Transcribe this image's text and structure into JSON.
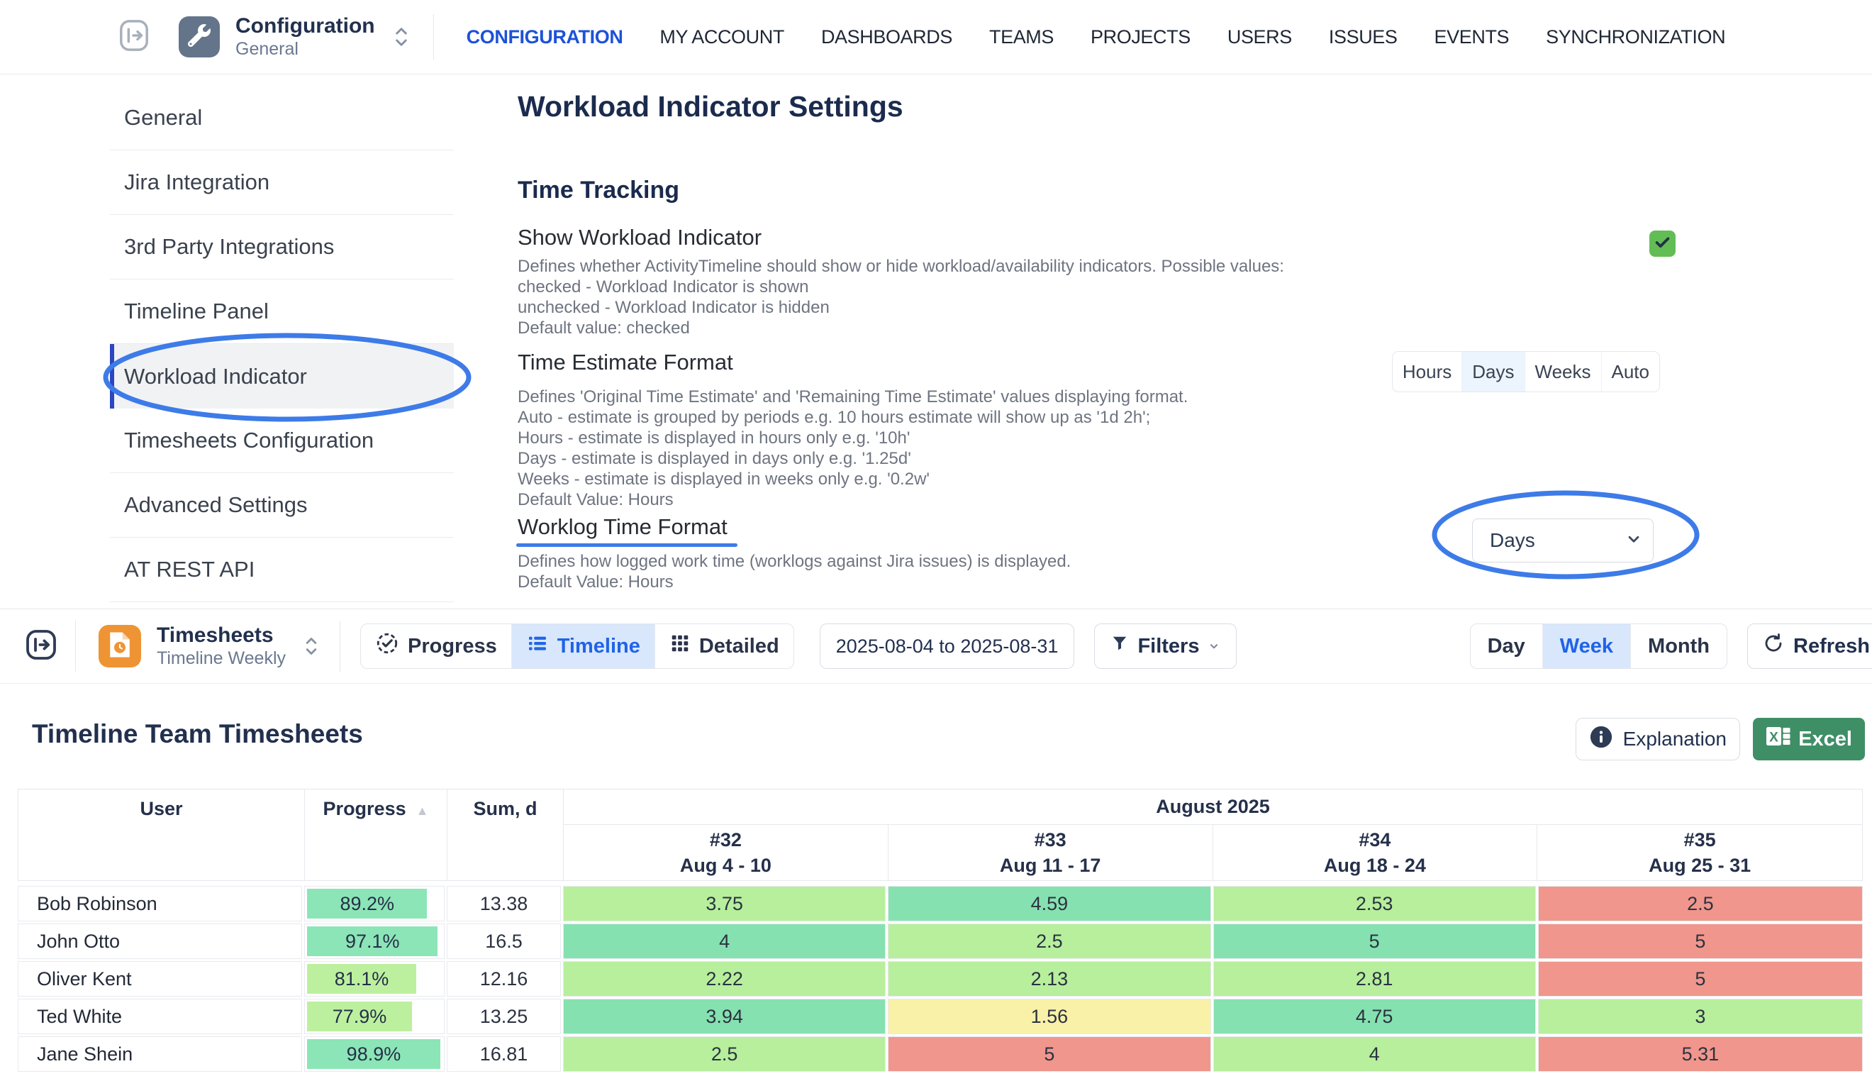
{
  "colors": {
    "annotation_blue": "#3D7BE8",
    "nav_active_blue": "#1D52D8",
    "selected_tab_bg": "#D9E7FC",
    "selected_tab_text": "#2063E6",
    "checkbox_green": "#63BD55",
    "excel_green": "#3F8F66",
    "timesheets_icon_orange": "#EF9434",
    "config_icon_slate": "#64748B",
    "cell_teal": "#86E1B0",
    "cell_green": "#B7EF9D",
    "cell_yellow": "#F8F1A7",
    "cell_red": "#F0968C"
  },
  "upper": {
    "app_switcher": {
      "title": "Configuration",
      "subtitle": "General"
    },
    "nav_items": [
      {
        "label": "CONFIGURATION",
        "active": true
      },
      {
        "label": "MY ACCOUNT"
      },
      {
        "label": "DASHBOARDS"
      },
      {
        "label": "TEAMS"
      },
      {
        "label": "PROJECTS"
      },
      {
        "label": "USERS"
      },
      {
        "label": "ISSUES"
      },
      {
        "label": "EVENTS"
      },
      {
        "label": "SYNCHRONIZATION"
      }
    ],
    "sidebar_items": [
      {
        "label": "General"
      },
      {
        "label": "Jira Integration"
      },
      {
        "label": "3rd Party Integrations"
      },
      {
        "label": "Timeline Panel"
      },
      {
        "label": "Workload Indicator",
        "active": true
      },
      {
        "label": "Timesheets Configuration"
      },
      {
        "label": "Advanced Settings"
      },
      {
        "label": "AT REST API"
      }
    ],
    "page_title": "Workload Indicator Settings",
    "section_title": "Time Tracking",
    "fields": [
      {
        "title": "Show Workload Indicator",
        "description": [
          "Defines whether ActivityTimeline should show or hide workload/availability indicators. Possible values:",
          "checked - Workload Indicator is shown",
          "unchecked - Workload Indicator is hidden",
          "Default value: checked"
        ],
        "control": "checkbox",
        "checked": true
      },
      {
        "title": "Time Estimate Format",
        "description": [
          "Defines 'Original Time Estimate' and 'Remaining Time Estimate' values displaying format.",
          "Auto - estimate is grouped by periods e.g. 10 hours estimate will show up as '1d 2h';",
          "Hours - estimate is displayed in hours only e.g. '10h'",
          "Days - estimate is displayed in days only e.g. '1.25d'",
          "Weeks - estimate is displayed in weeks only e.g. '0.2w'",
          "Default Value: Hours"
        ],
        "control": "segmented",
        "options": [
          "Hours",
          "Days",
          "Weeks",
          "Auto"
        ],
        "selected": "Days"
      },
      {
        "title": "Worklog Time Format",
        "description": [
          "Defines how logged work time (worklogs against Jira issues) is displayed.",
          "Default Value: Hours"
        ],
        "control": "select",
        "value": "Days"
      }
    ]
  },
  "lower": {
    "app_switcher": {
      "title": "Timesheets",
      "subtitle": "Timeline Weekly"
    },
    "view_tabs": [
      {
        "label": "Progress",
        "icon": "check-circle-icon"
      },
      {
        "label": "Timeline",
        "icon": "list-icon",
        "active": true
      },
      {
        "label": "Detailed",
        "icon": "grid-icon"
      }
    ],
    "date_range": "2025-08-04 to 2025-08-31",
    "filters_label": "Filters",
    "period_tabs": [
      {
        "label": "Day"
      },
      {
        "label": "Week",
        "active": true
      },
      {
        "label": "Month"
      }
    ],
    "refresh_label": "Refresh",
    "title": "Timeline Team Timesheets",
    "explanation_label": "Explanation",
    "excel_label": "Excel",
    "table": {
      "columns": [
        "User",
        "Progress",
        "Sum, d"
      ],
      "month_header": "August 2025",
      "weeks": [
        {
          "num": "#32",
          "range": "Aug 4 - 10"
        },
        {
          "num": "#33",
          "range": "Aug 11 - 17"
        },
        {
          "num": "#34",
          "range": "Aug 18 - 24"
        },
        {
          "num": "#35",
          "range": "Aug 25 - 31"
        }
      ],
      "rows": [
        {
          "user": "Bob Robinson",
          "progress": 89.2,
          "progress_label": "89.2%",
          "progress_color": "teal",
          "sum": "13.38",
          "cells": [
            {
              "value": "3.75",
              "color": "green"
            },
            {
              "value": "4.59",
              "color": "teal"
            },
            {
              "value": "2.53",
              "color": "green"
            },
            {
              "value": "2.5",
              "color": "red"
            }
          ]
        },
        {
          "user": "John Otto",
          "progress": 97.1,
          "progress_label": "97.1%",
          "progress_color": "teal",
          "sum": "16.5",
          "cells": [
            {
              "value": "4",
              "color": "teal"
            },
            {
              "value": "2.5",
              "color": "green"
            },
            {
              "value": "5",
              "color": "teal"
            },
            {
              "value": "5",
              "color": "red"
            }
          ]
        },
        {
          "user": "Oliver Kent",
          "progress": 81.1,
          "progress_label": "81.1%",
          "progress_color": "green",
          "sum": "12.16",
          "cells": [
            {
              "value": "2.22",
              "color": "green"
            },
            {
              "value": "2.13",
              "color": "green"
            },
            {
              "value": "2.81",
              "color": "green"
            },
            {
              "value": "5",
              "color": "red"
            }
          ]
        },
        {
          "user": "Ted White",
          "progress": 77.9,
          "progress_label": "77.9%",
          "progress_color": "green",
          "sum": "13.25",
          "cells": [
            {
              "value": "3.94",
              "color": "teal"
            },
            {
              "value": "1.56",
              "color": "yellow"
            },
            {
              "value": "4.75",
              "color": "teal"
            },
            {
              "value": "3",
              "color": "green"
            }
          ]
        },
        {
          "user": "Jane Shein",
          "progress": 98.9,
          "progress_label": "98.9%",
          "progress_color": "teal",
          "sum": "16.81",
          "cells": [
            {
              "value": "2.5",
              "color": "green"
            },
            {
              "value": "5",
              "color": "red"
            },
            {
              "value": "4",
              "color": "green"
            },
            {
              "value": "5.31",
              "color": "red"
            }
          ]
        }
      ]
    }
  }
}
